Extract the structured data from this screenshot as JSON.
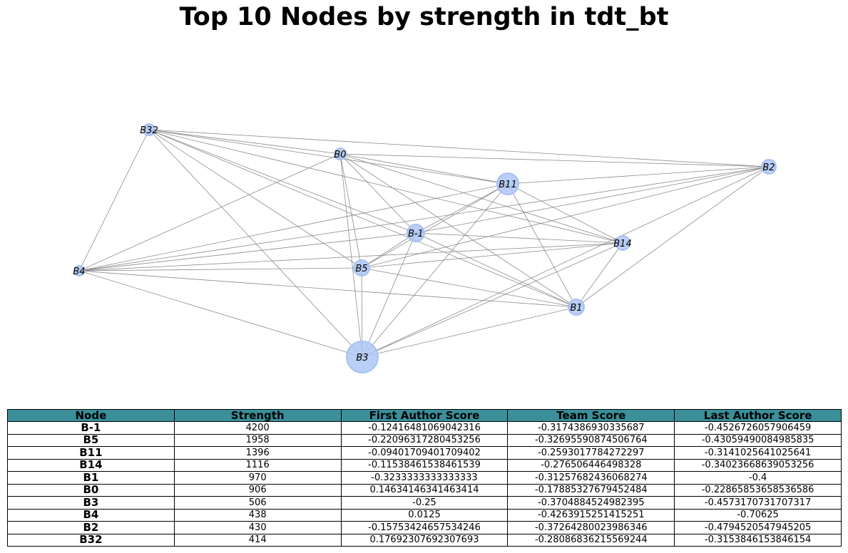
{
  "title": "Top 10 Nodes by strength in tdt_bt",
  "graph": {
    "colors": {
      "node_fill": "#aec7f5",
      "node_stroke": "#a8c1f0",
      "edge": "#8c8c8c"
    },
    "nodes": [
      {
        "id": "B32",
        "label": "B32",
        "strength": 414
      },
      {
        "id": "B0",
        "label": "B0",
        "strength": 906
      },
      {
        "id": "B11",
        "label": "B11",
        "strength": 1396
      },
      {
        "id": "B2",
        "label": "B2",
        "strength": 430
      },
      {
        "id": "B-1",
        "label": "B-1",
        "strength": 4200
      },
      {
        "id": "B14",
        "label": "B14",
        "strength": 1116
      },
      {
        "id": "B4",
        "label": "B4",
        "strength": 438
      },
      {
        "id": "B5",
        "label": "B5",
        "strength": 1958
      },
      {
        "id": "B1",
        "label": "B1",
        "strength": 970
      },
      {
        "id": "B3",
        "label": "B3",
        "strength": 506
      }
    ],
    "edges": [
      [
        "B32",
        "B0"
      ],
      [
        "B32",
        "B2"
      ],
      [
        "B32",
        "B11"
      ],
      [
        "B32",
        "B-1"
      ],
      [
        "B32",
        "B14"
      ],
      [
        "B32",
        "B5"
      ],
      [
        "B32",
        "B1"
      ],
      [
        "B32",
        "B3"
      ],
      [
        "B32",
        "B4"
      ],
      [
        "B0",
        "B2"
      ],
      [
        "B0",
        "B11"
      ],
      [
        "B0",
        "B-1"
      ],
      [
        "B0",
        "B14"
      ],
      [
        "B0",
        "B5"
      ],
      [
        "B0",
        "B1"
      ],
      [
        "B0",
        "B3"
      ],
      [
        "B0",
        "B4"
      ],
      [
        "B11",
        "B2"
      ],
      [
        "B11",
        "B-1"
      ],
      [
        "B11",
        "B14"
      ],
      [
        "B11",
        "B5"
      ],
      [
        "B11",
        "B1"
      ],
      [
        "B11",
        "B3"
      ],
      [
        "B11",
        "B4"
      ],
      [
        "B2",
        "B-1"
      ],
      [
        "B2",
        "B5"
      ],
      [
        "B2",
        "B1"
      ],
      [
        "B2",
        "B3"
      ],
      [
        "B2",
        "B4"
      ],
      [
        "B-1",
        "B14"
      ],
      [
        "B-1",
        "B5"
      ],
      [
        "B-1",
        "B1"
      ],
      [
        "B-1",
        "B3"
      ],
      [
        "B-1",
        "B4"
      ],
      [
        "B14",
        "B5"
      ],
      [
        "B14",
        "B1"
      ],
      [
        "B14",
        "B3"
      ],
      [
        "B14",
        "B4"
      ],
      [
        "B4",
        "B5"
      ],
      [
        "B4",
        "B1"
      ],
      [
        "B4",
        "B3"
      ],
      [
        "B5",
        "B1"
      ],
      [
        "B5",
        "B3"
      ],
      [
        "B1",
        "B3"
      ]
    ]
  },
  "table": {
    "headers": [
      "Node",
      "Strength",
      "First Author Score",
      "Team Score",
      "Last Author Score"
    ],
    "rows": [
      [
        "B-1",
        "4200",
        "-0.12416481069042316",
        "-0.3174386930335687",
        "-0.4526726057906459"
      ],
      [
        "B5",
        "1958",
        "-0.22096317280453256",
        "-0.32695590874506764",
        "-0.43059490084985835"
      ],
      [
        "B11",
        "1396",
        "-0.09401709401709402",
        "-0.2593017784272297",
        "-0.3141025641025641"
      ],
      [
        "B14",
        "1116",
        "-0.11538461538461539",
        "-0.276506446498328",
        "-0.34023668639053256"
      ],
      [
        "B1",
        "970",
        "-0.3233333333333333",
        "-0.31257682436068274",
        "-0.4"
      ],
      [
        "B0",
        "906",
        "0.14634146341463414",
        "-0.17885327679452484",
        "-0.22865853658536586"
      ],
      [
        "B3",
        "506",
        "-0.25",
        "-0.3704884524982395",
        "-0.4573170731707317"
      ],
      [
        "B4",
        "438",
        "0.0125",
        "-0.4263915251415251",
        "-0.70625"
      ],
      [
        "B2",
        "430",
        "-0.15753424657534246",
        "-0.37264280023986346",
        "-0.4794520547945205"
      ],
      [
        "B32",
        "414",
        "0.17692307692307693",
        "-0.28086836215569244",
        "-0.3153846153846154"
      ]
    ]
  }
}
